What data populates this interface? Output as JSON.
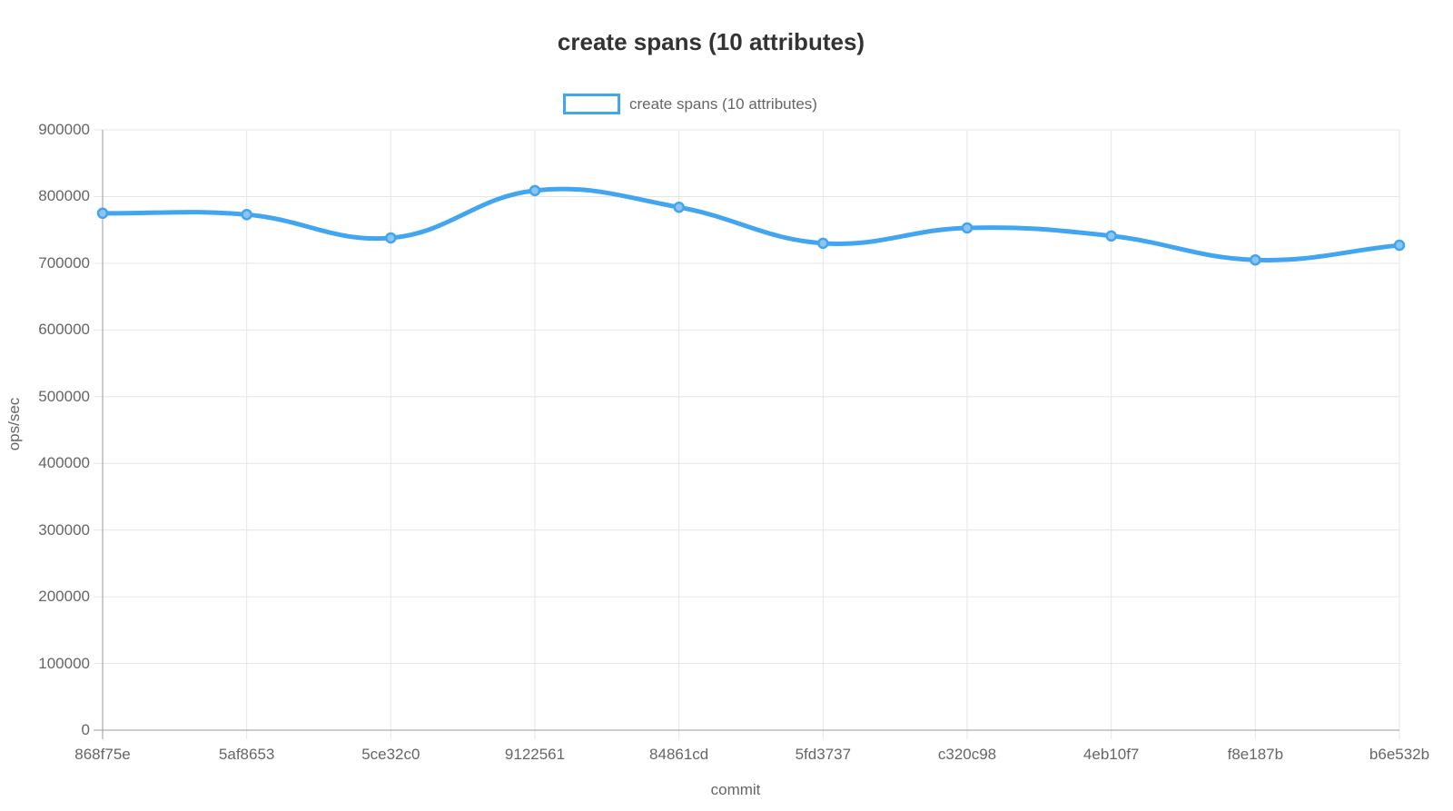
{
  "title": "create spans (10 attributes)",
  "legend": {
    "label": "create spans (10 attributes)"
  },
  "axes": {
    "y_title": "ops/sec",
    "x_title": "commit"
  },
  "colors": {
    "line": "#42a5f0",
    "point_fill": "#8fc3f0",
    "title_text": "#333333",
    "tick_text": "#666666",
    "gridline": "#e6e6e6",
    "axis_line": "#999999",
    "background": "#ffffff"
  },
  "chart_data": {
    "type": "line",
    "title": "create spans (10 attributes)",
    "xlabel": "commit",
    "ylabel": "ops/sec",
    "categories": [
      "868f75e",
      "5af8653",
      "5ce32c0",
      "9122561",
      "84861cd",
      "5fd3737",
      "c320c98",
      "4eb10f7",
      "f8e187b",
      "b6e532b"
    ],
    "series": [
      {
        "name": "create spans (10 attributes)",
        "values": [
          775000,
          773000,
          738000,
          809000,
          784000,
          730000,
          753000,
          741000,
          705000,
          727000
        ]
      }
    ],
    "ylim": [
      0,
      900000
    ],
    "y_ticks": [
      0,
      100000,
      200000,
      300000,
      400000,
      500000,
      600000,
      700000,
      800000,
      900000
    ],
    "grid": true,
    "legend_position": "top",
    "curve_tension": 0.4
  }
}
